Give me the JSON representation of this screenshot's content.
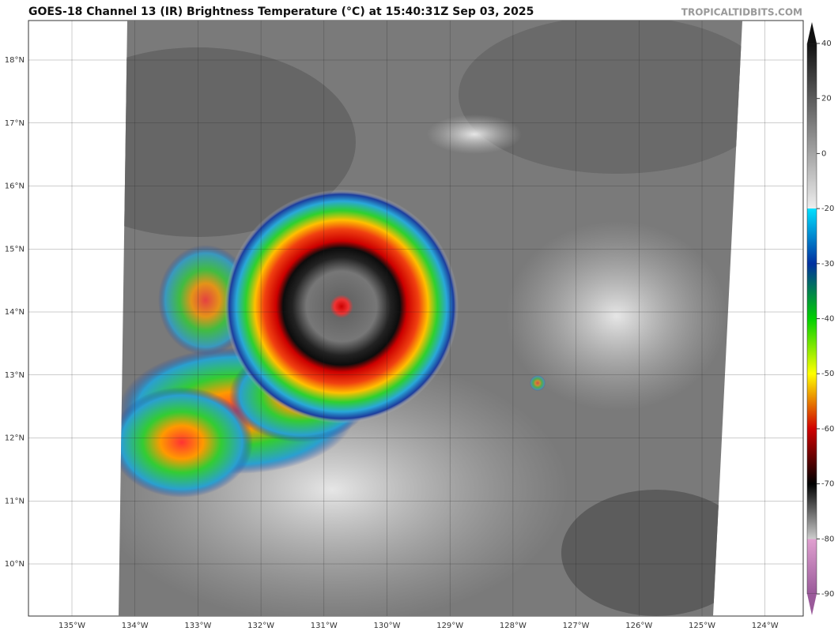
{
  "title": "GOES-18 Channel 13 (IR) Brightness Temperature (°C) at 15:40:31Z Sep 03, 2025",
  "credit": "TROPICALTIDBITS.COM",
  "longitudes": [
    "135°W",
    "134°W",
    "133°W",
    "132°W",
    "131°W",
    "130°W",
    "129°W",
    "128°W",
    "127°W",
    "126°W",
    "125°W",
    "124°W"
  ],
  "latitudes": [
    "18°N",
    "17°N",
    "16°N",
    "15°N",
    "14°N",
    "13°N",
    "12°N",
    "11°N",
    "10°N"
  ],
  "colorbar": {
    "ticks": [
      40,
      20,
      0,
      -20,
      -30,
      -40,
      -50,
      -60,
      -70,
      -80,
      -90
    ]
  }
}
